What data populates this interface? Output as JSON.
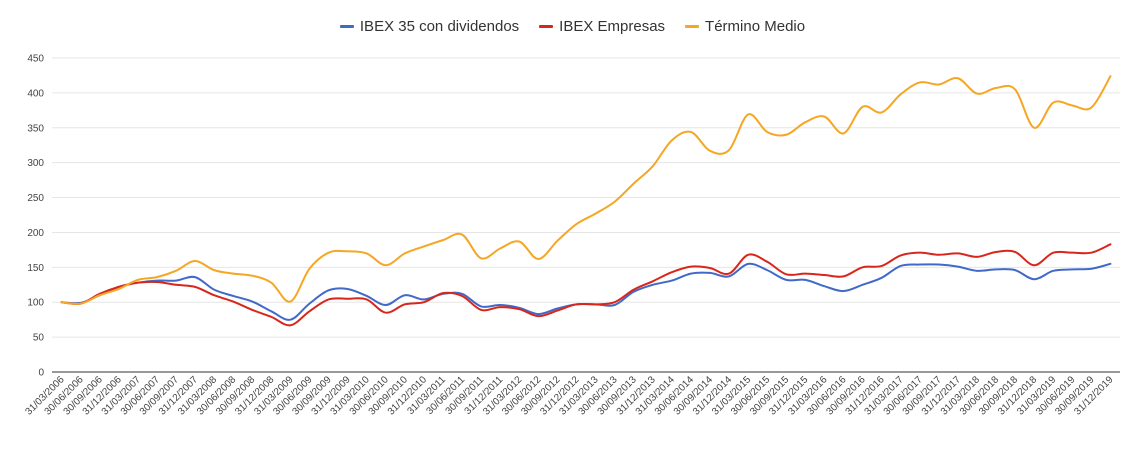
{
  "chart_data": {
    "type": "line",
    "title": "",
    "xlabel": "",
    "ylabel": "",
    "ylim": [
      0,
      450
    ],
    "yticks": [
      0,
      50,
      100,
      150,
      200,
      250,
      300,
      350,
      400,
      450
    ],
    "grid": true,
    "legend_position": "top",
    "categories": [
      "31/03/2006",
      "30/06/2006",
      "30/09/2006",
      "31/12/2006",
      "31/03/2007",
      "30/06/2007",
      "30/09/2007",
      "31/12/2007",
      "31/03/2008",
      "30/06/2008",
      "30/09/2008",
      "31/12/2008",
      "31/03/2009",
      "30/06/2009",
      "30/09/2009",
      "31/12/2009",
      "31/03/2010",
      "30/06/2010",
      "30/09/2010",
      "31/12/2010",
      "31/03/2011",
      "30/06/2011",
      "30/09/2011",
      "31/12/2011",
      "31/03/2012",
      "30/06/2012",
      "30/09/2012",
      "31/12/2012",
      "31/03/2013",
      "30/06/2013",
      "30/09/2013",
      "31/12/2013",
      "31/03/2014",
      "30/06/2014",
      "30/09/2014",
      "31/12/2014",
      "31/03/2015",
      "30/06/2015",
      "30/09/2015",
      "31/12/2015",
      "31/03/2016",
      "30/06/2016",
      "30/09/2016",
      "31/12/2016",
      "31/03/2017",
      "30/06/2017",
      "30/09/2017",
      "31/12/2017",
      "31/03/2018",
      "30/06/2018",
      "30/09/2018",
      "31/12/2018",
      "31/03/2019",
      "30/06/2019",
      "30/09/2019",
      "31/12/2019"
    ],
    "series": [
      {
        "name": "IBEX 35 con dividendos",
        "color": "#4169c8",
        "values": [
          100,
          99,
          110,
          122,
          128,
          131,
          131,
          136,
          118,
          109,
          101,
          87,
          75,
          98,
          117,
          119,
          109,
          96,
          110,
          104,
          112,
          112,
          94,
          96,
          92,
          83,
          91,
          97,
          97,
          96,
          115,
          125,
          131,
          141,
          142,
          137,
          155,
          146,
          132,
          132,
          123,
          116,
          125,
          135,
          152,
          154,
          154,
          151,
          145,
          147,
          146,
          133,
          145,
          147,
          148,
          155
        ]
      },
      {
        "name": "IBEX Empresas",
        "color": "#d9261c",
        "values": [
          100,
          98,
          112,
          122,
          128,
          129,
          125,
          122,
          110,
          101,
          89,
          79,
          67,
          87,
          104,
          105,
          104,
          85,
          97,
          100,
          113,
          109,
          89,
          93,
          90,
          80,
          88,
          97,
          97,
          100,
          118,
          130,
          143,
          151,
          149,
          141,
          168,
          158,
          140,
          141,
          139,
          137,
          150,
          152,
          167,
          171,
          168,
          170,
          165,
          172,
          172,
          153,
          171,
          171,
          171,
          183
        ]
      },
      {
        "name": "Término Medio",
        "color": "#f5a623",
        "values": [
          100,
          98,
          110,
          119,
          132,
          136,
          145,
          159,
          146,
          141,
          138,
          128,
          101,
          148,
          171,
          173,
          170,
          153,
          170,
          180,
          189,
          197,
          163,
          177,
          187,
          162,
          188,
          212,
          227,
          244,
          270,
          295,
          332,
          344,
          317,
          318,
          369,
          344,
          340,
          358,
          366,
          342,
          380,
          372,
          398,
          415,
          412,
          421,
          399,
          407,
          405,
          350,
          386,
          382,
          379,
          424
        ]
      }
    ]
  }
}
